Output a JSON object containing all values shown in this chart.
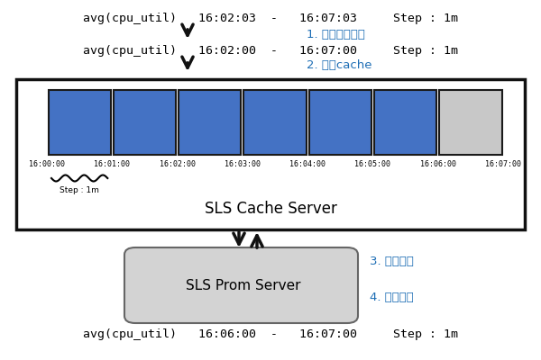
{
  "bg_color": "#ffffff",
  "top_text_parts": [
    "avg(cpu_util)",
    "16:02:03",
    "-",
    "16:07:03",
    "Step : 1m"
  ],
  "step1_label": "1. 时间范围对齐",
  "aligned_text_parts": [
    "avg(cpu_util)",
    "16:02:00",
    "-",
    "16:07:00",
    "Step : 1m"
  ],
  "step2_label": "2. 访问cache",
  "cache_box_color": "#ffffff",
  "cache_box_edge": "#111111",
  "blue_color": "#4472c4",
  "gray_color": "#c8c8c8",
  "time_labels": [
    "16:00:00",
    "16:01:00",
    "16:02:00",
    "16:03:00",
    "16:04:00",
    "16:05:00",
    "16:06:00",
    "16:07:00"
  ],
  "cache_server_label": "SLS Cache Server",
  "step_label": "Step : 1m",
  "prom_server_label": "SLS Prom Server",
  "prom_box_color": "#d3d3d3",
  "step3_label": "3. 执行查询",
  "step4_label": "4. 更新缓存",
  "bottom_text_parts": [
    "avg(cpu_util)",
    "16:06:00",
    "-",
    "16:07:00",
    "Step : 1m"
  ],
  "arrow_color": "#111111",
  "text_blue": "#1e6eb5",
  "num_blue_blocks": 6,
  "num_gray_blocks": 1
}
